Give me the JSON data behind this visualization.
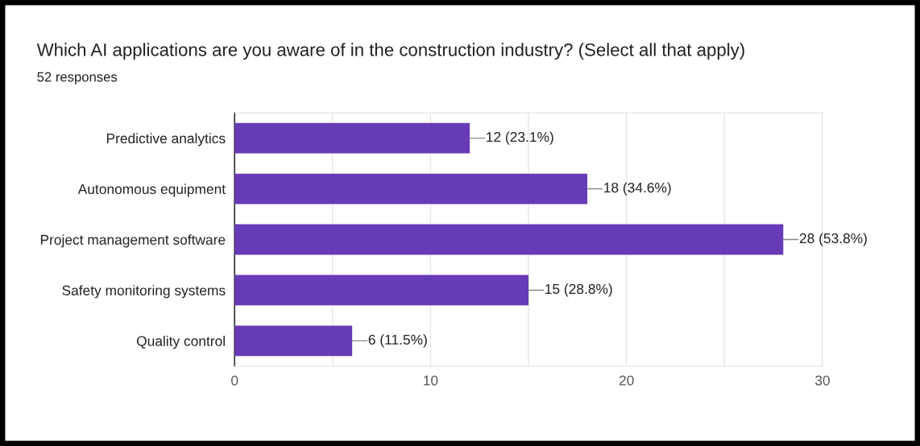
{
  "chart_data": {
    "type": "bar",
    "orientation": "horizontal",
    "title": "Which AI applications are you aware of in the construction industry? (Select all that apply)",
    "subtitle": "52 responses",
    "categories": [
      "Predictive analytics",
      "Autonomous equipment",
      "Project management software",
      "Safety monitoring systems",
      "Quality control"
    ],
    "values": [
      12,
      18,
      28,
      15,
      6
    ],
    "value_labels": [
      "12 (23.1%)",
      "18 (34.6%)",
      "28 (53.8%)",
      "15 (28.8%)",
      "6 (11.5%)"
    ],
    "color": "#673ab7",
    "xlim": [
      0,
      30
    ],
    "xticks": [
      0,
      {
        "value": 5,
        "label": null
      },
      10,
      {
        "value": 15,
        "label": null
      },
      20,
      {
        "value": 25,
        "label": null
      },
      30
    ],
    "grid": "x",
    "legend": false
  }
}
